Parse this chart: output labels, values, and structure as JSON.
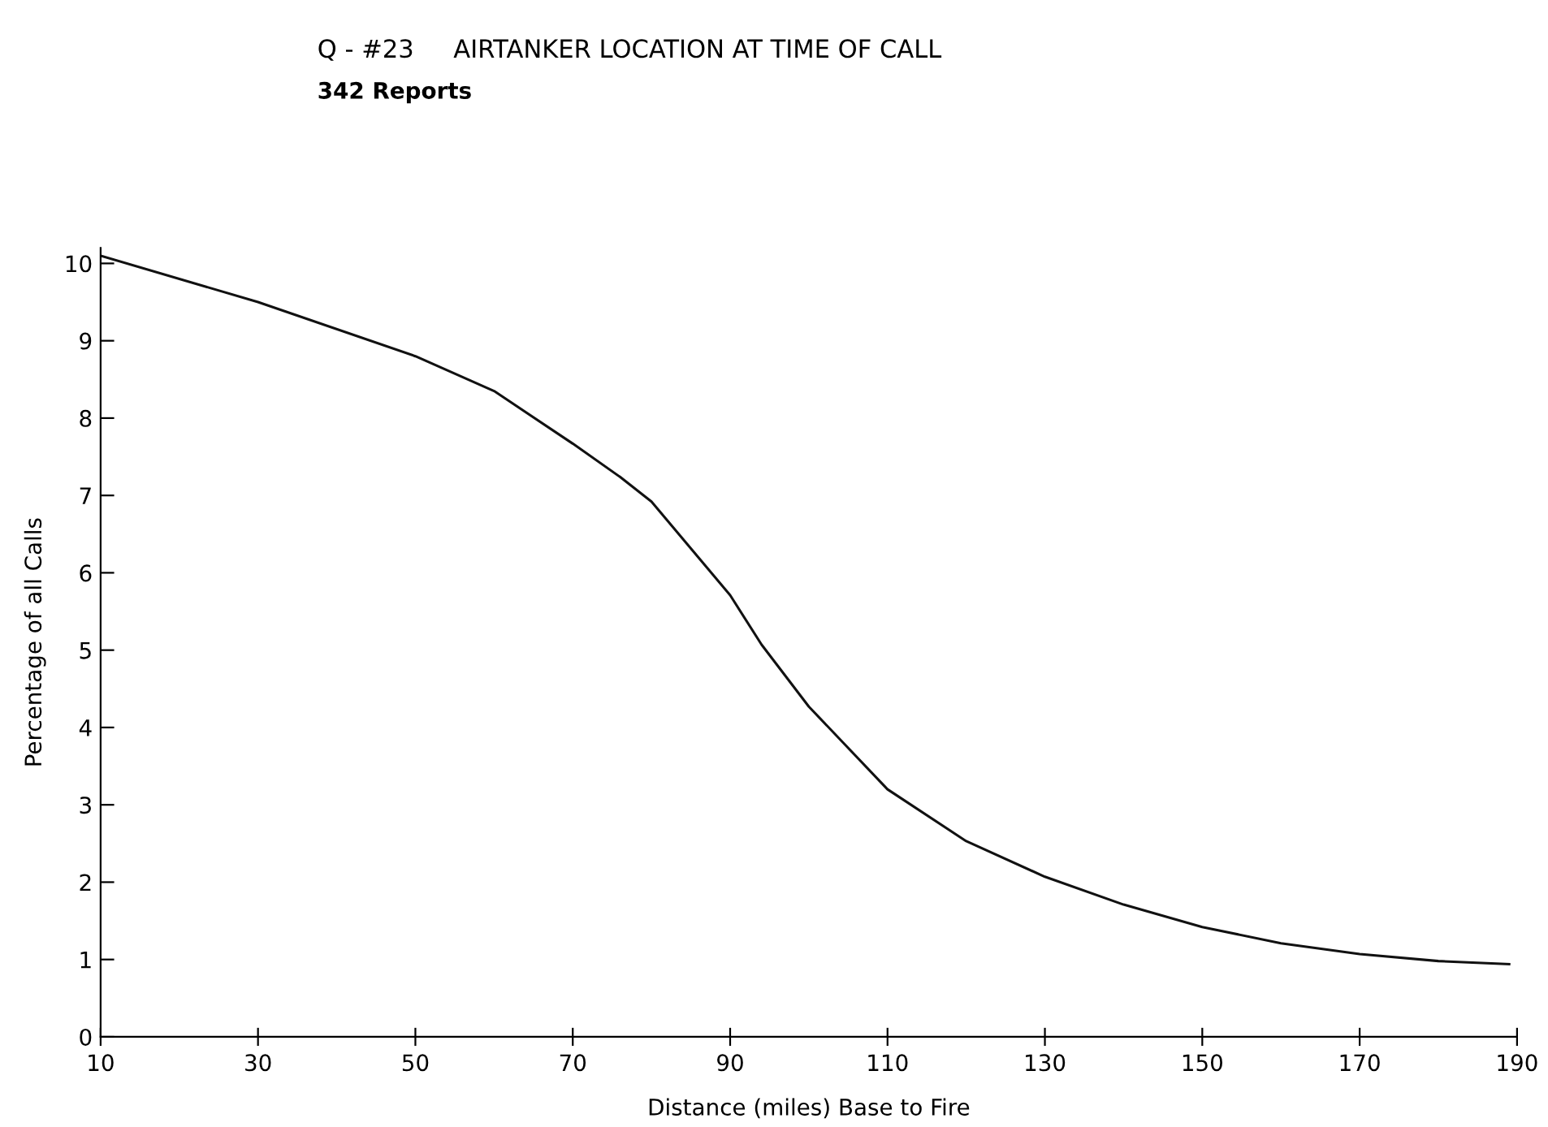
{
  "chart_data": {
    "type": "line",
    "title": "Q - #23     AIRTANKER LOCATION AT TIME OF CALL",
    "subtitle": "342 Reports",
    "xlabel": "Distance (miles) Base to Fire",
    "ylabel": "Percentage of all Calls",
    "x": [
      10,
      30,
      50,
      60,
      70,
      76,
      80,
      90,
      94,
      100,
      110,
      120,
      130,
      140,
      150,
      160,
      170,
      180,
      189
    ],
    "series": [
      {
        "color": "#111111",
        "values": [
          10.1,
          9.5,
          8.8,
          8.35,
          7.67,
          7.24,
          6.92,
          5.71,
          5.07,
          4.27,
          3.2,
          2.53,
          2.07,
          1.71,
          1.42,
          1.21,
          1.07,
          0.98,
          0.94
        ]
      }
    ],
    "xlim": [
      10,
      190
    ],
    "xticks": [
      10,
      30,
      50,
      70,
      90,
      110,
      130,
      150,
      170,
      190
    ],
    "ylim": [
      0,
      10.2
    ],
    "yticks": [
      0,
      1,
      2,
      3,
      4,
      5,
      6,
      7,
      8,
      9,
      10
    ],
    "grid": false,
    "marker": "none",
    "line_style": "solid"
  }
}
